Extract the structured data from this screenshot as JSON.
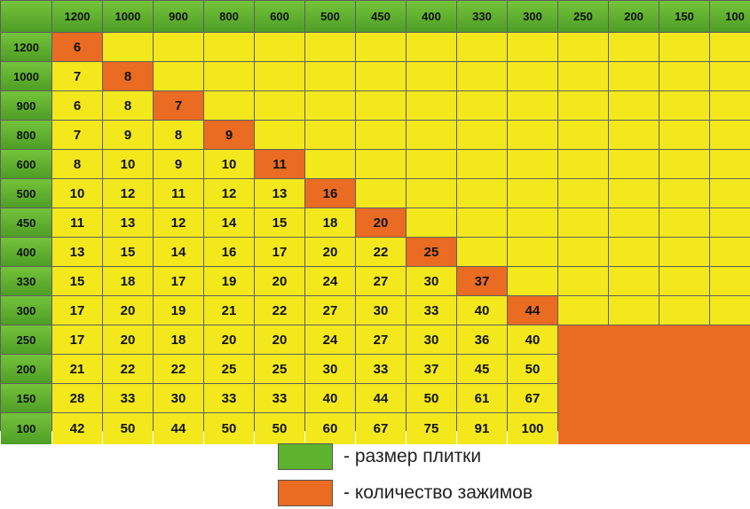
{
  "chart_data": {
    "type": "table",
    "title": "",
    "column_headers": [
      "1200",
      "1000",
      "900",
      "800",
      "600",
      "500",
      "450",
      "400",
      "330",
      "300",
      "250",
      "200",
      "150",
      "100"
    ],
    "row_headers": [
      "1200",
      "1000",
      "900",
      "800",
      "600",
      "500",
      "450",
      "400",
      "330",
      "300",
      "250",
      "200",
      "150",
      "100"
    ],
    "rows": [
      [
        6
      ],
      [
        7,
        8
      ],
      [
        6,
        8,
        7
      ],
      [
        7,
        9,
        8,
        9
      ],
      [
        8,
        10,
        9,
        10,
        11
      ],
      [
        10,
        12,
        11,
        12,
        13,
        16
      ],
      [
        11,
        13,
        12,
        14,
        15,
        18,
        20
      ],
      [
        13,
        15,
        14,
        16,
        17,
        20,
        22,
        25
      ],
      [
        15,
        18,
        17,
        19,
        20,
        24,
        27,
        30,
        37
      ],
      [
        17,
        20,
        19,
        21,
        22,
        27,
        30,
        33,
        40,
        44
      ],
      [
        17,
        20,
        18,
        20,
        20,
        24,
        27,
        30,
        36,
        40
      ],
      [
        21,
        22,
        22,
        25,
        25,
        30,
        33,
        37,
        45,
        50
      ],
      [
        28,
        33,
        30,
        33,
        33,
        40,
        44,
        50,
        61,
        67
      ],
      [
        42,
        50,
        44,
        50,
        50,
        60,
        67,
        75,
        91,
        100
      ]
    ],
    "colors": {
      "header": "#5db32d",
      "value": "#f2e81c",
      "highlight": "#ea6b22"
    }
  },
  "legend": {
    "items": [
      {
        "label": "- размер плитки",
        "color": "#5db32d"
      },
      {
        "label": "- количество зажимов",
        "color": "#ea6b22"
      }
    ]
  }
}
